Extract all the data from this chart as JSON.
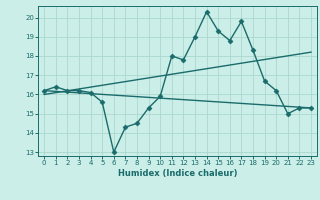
{
  "xlabel": "Humidex (Indice chaleur)",
  "ylabel": "",
  "background_color": "#cceee8",
  "grid_color": "#aad8d0",
  "line_color": "#1a6b6b",
  "xlim": [
    -0.5,
    23.5
  ],
  "ylim": [
    12.8,
    20.6
  ],
  "yticks": [
    13,
    14,
    15,
    16,
    17,
    18,
    19,
    20
  ],
  "xticks": [
    0,
    1,
    2,
    3,
    4,
    5,
    6,
    7,
    8,
    9,
    10,
    11,
    12,
    13,
    14,
    15,
    16,
    17,
    18,
    19,
    20,
    21,
    22,
    23
  ],
  "line1_x": [
    0,
    1,
    2,
    3,
    4,
    5,
    6,
    7,
    8,
    9,
    10,
    11,
    12,
    13,
    14,
    15,
    16,
    17,
    18,
    19,
    20,
    21,
    22,
    23
  ],
  "line1_y": [
    16.2,
    16.4,
    16.2,
    16.2,
    16.1,
    15.6,
    13.0,
    14.3,
    14.5,
    15.3,
    15.9,
    18.0,
    17.8,
    19.0,
    20.3,
    19.3,
    18.8,
    19.8,
    18.3,
    16.7,
    16.2,
    15.0,
    15.3,
    15.3
  ],
  "line2_x": [
    0,
    23
  ],
  "line2_y": [
    16.2,
    15.3
  ],
  "line3_x": [
    0,
    23
  ],
  "line3_y": [
    16.0,
    18.2
  ],
  "marker": "D",
  "markersize": 2.5,
  "linewidth": 1.0
}
